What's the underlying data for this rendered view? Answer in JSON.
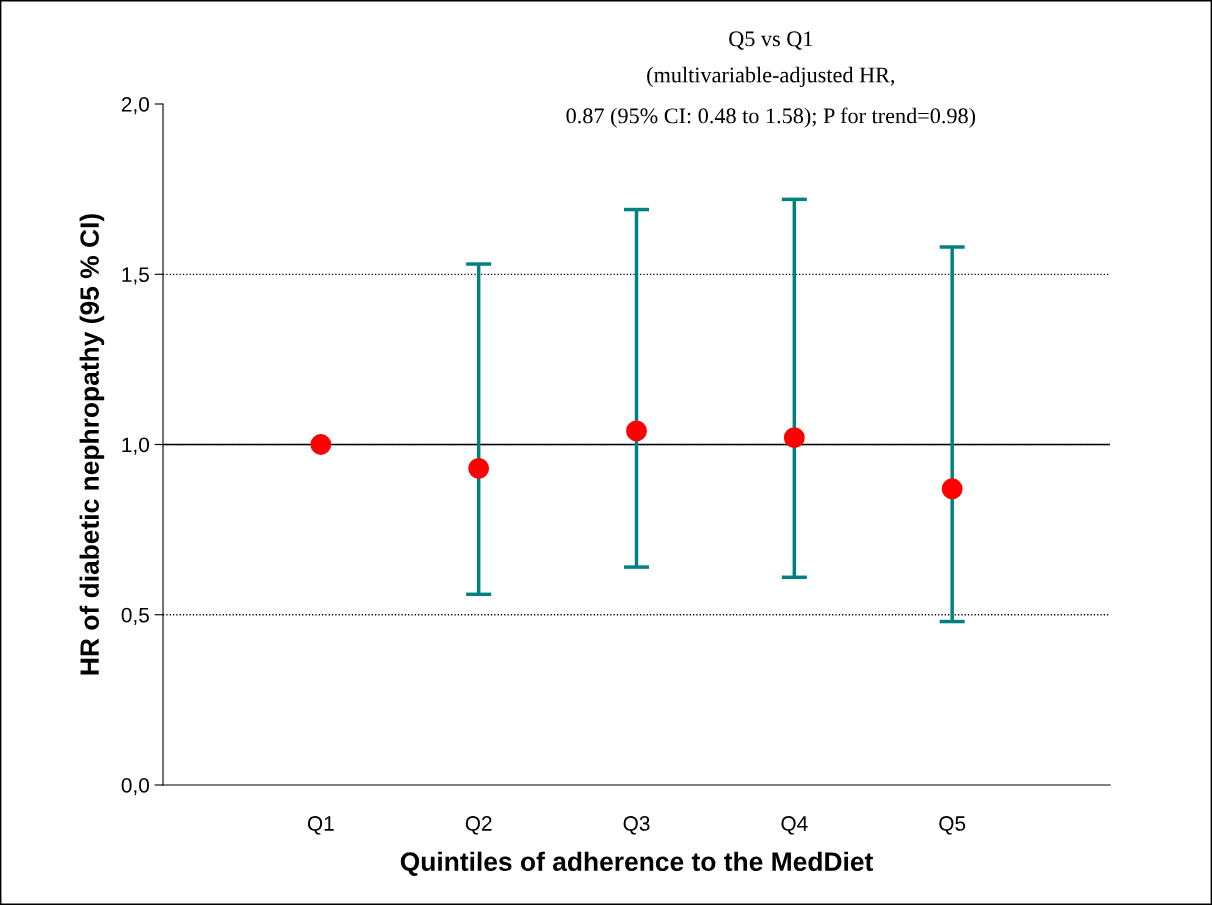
{
  "chart_data": {
    "type": "scatter",
    "xlabel": "Quintiles of adherence to the MedDiet",
    "ylabel": "HR of diabetic nephropathy (95 % CI)",
    "annotations": [
      "Q5 vs Q1",
      "(multivariable-adjusted HR,",
      "0.87 (95% CI: 0.48 to 1.58); P for trend=0.98)"
    ],
    "categories": [
      "Q1",
      "Q2",
      "Q3",
      "Q4",
      "Q5"
    ],
    "values": [
      1.0,
      0.93,
      1.04,
      1.02,
      0.87
    ],
    "errors": [
      null,
      [
        0.56,
        1.53
      ],
      [
        0.64,
        1.69
      ],
      [
        0.61,
        1.72
      ],
      [
        0.48,
        1.58
      ]
    ],
    "color": "#ff0000",
    "marker": "circle",
    "ylim": [
      0,
      2
    ],
    "yticks": [
      {
        "value": 0,
        "label": "0,0"
      },
      {
        "value": 0.5,
        "label": "0,5"
      },
      {
        "value": 1,
        "label": "1,0"
      },
      {
        "value": 1.5,
        "label": "1,5"
      },
      {
        "value": 2,
        "label": "2,0"
      }
    ],
    "grid": "y",
    "ref_lines": [
      {
        "axis": "y",
        "value": 1,
        "color": "#000000",
        "line_style": "solid"
      }
    ]
  }
}
